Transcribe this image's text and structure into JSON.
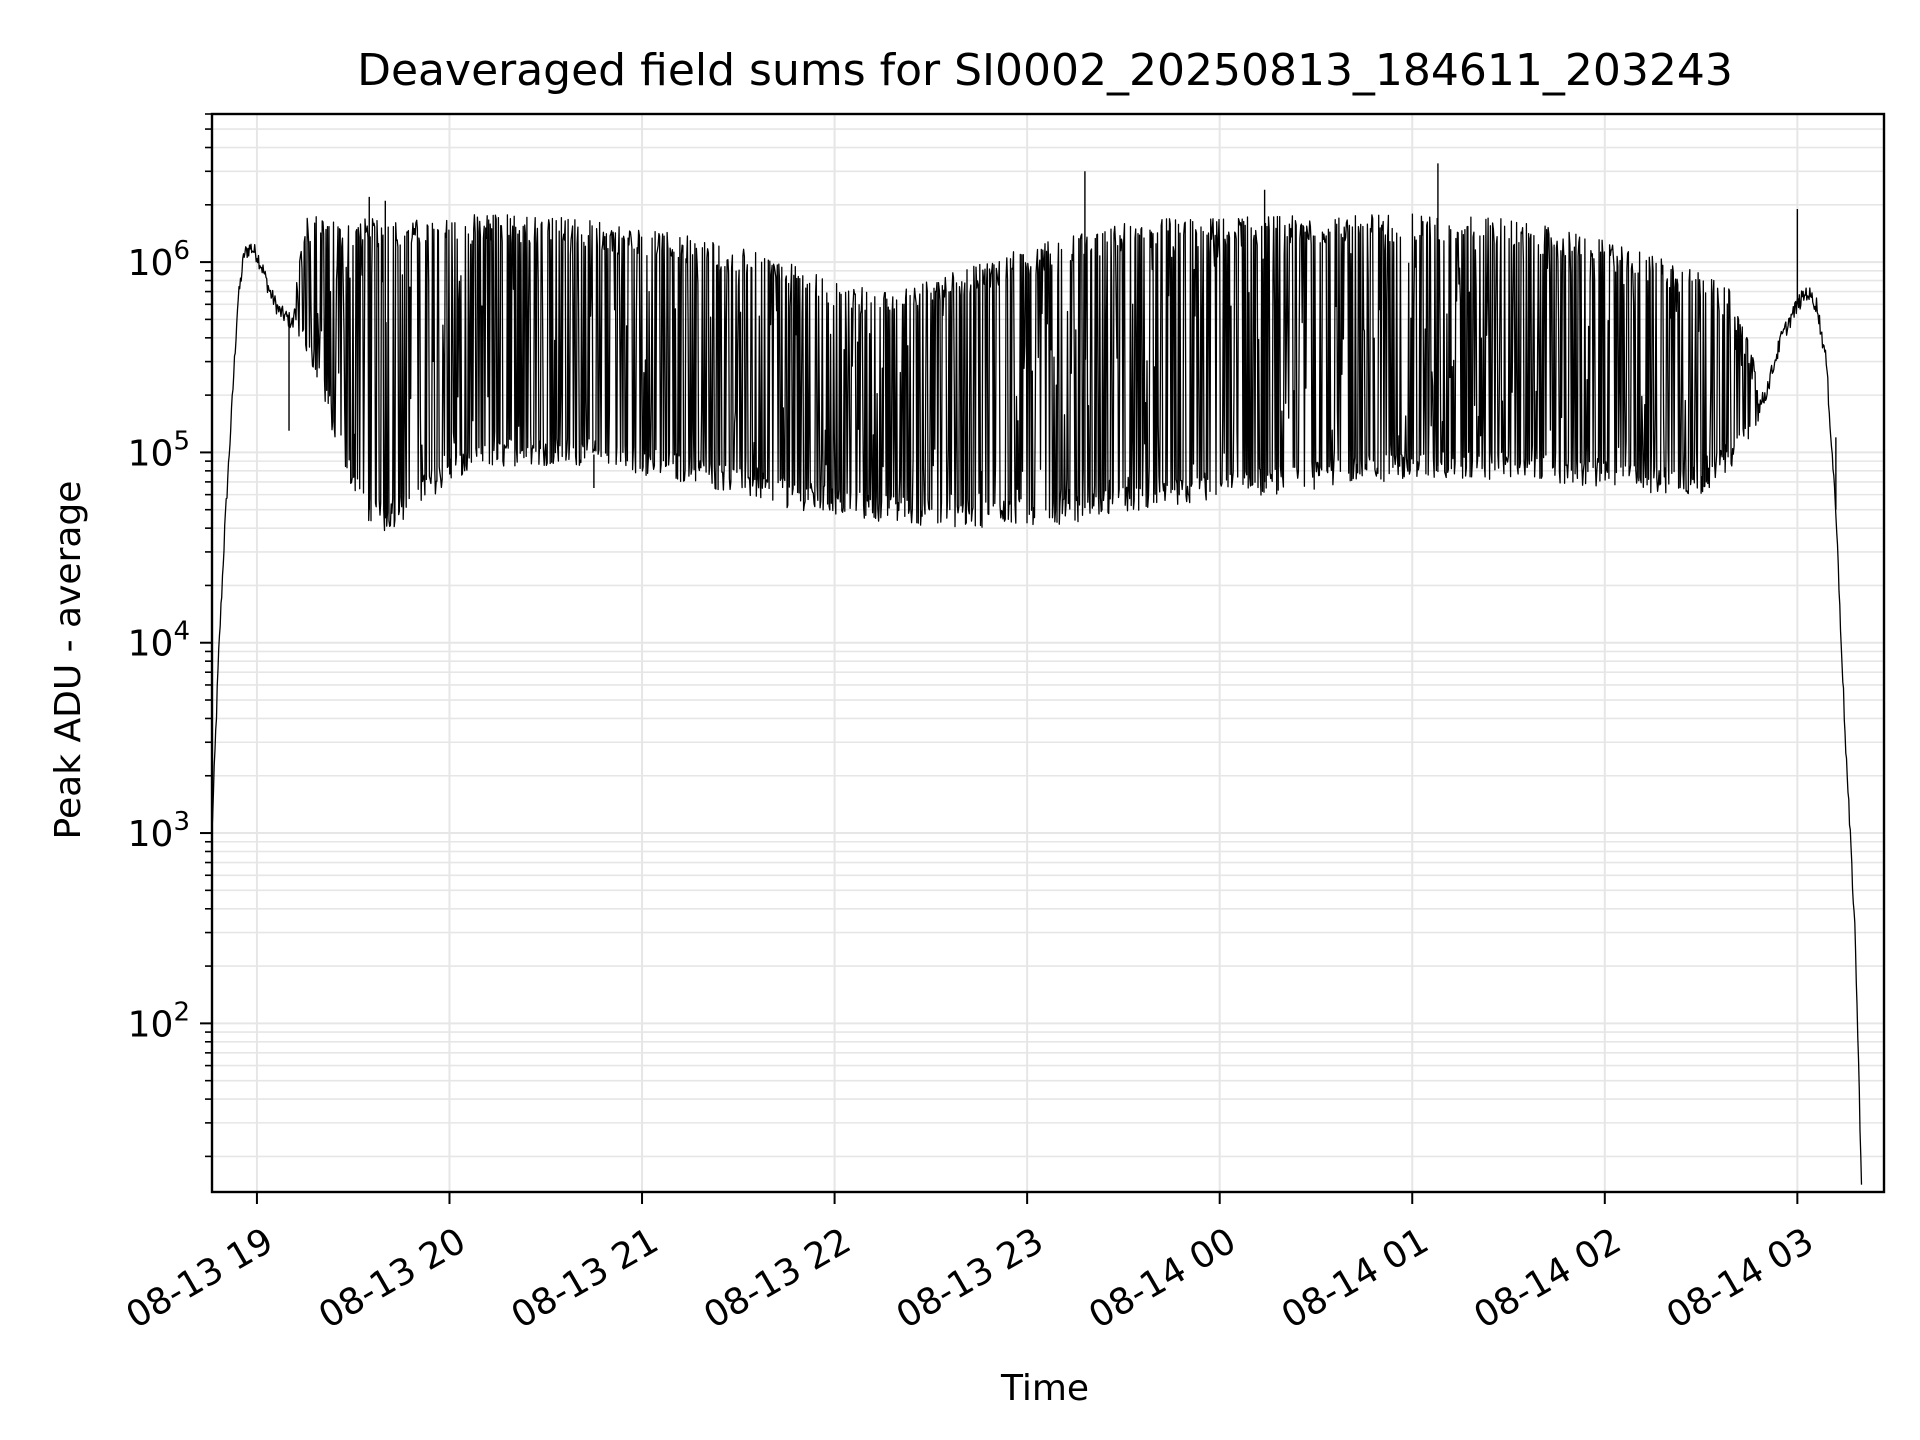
{
  "chart_data": {
    "type": "line",
    "title": "Deaveraged field sums for SI0002_20250813_184611_203243",
    "xlabel": "Time",
    "ylabel": "Peak ADU - average",
    "yscale": "log",
    "ylim": [
      13,
      6000000
    ],
    "xlim": [
      "2025-08-13 18:46",
      "2025-08-14 03:27"
    ],
    "grid": "both (major and minor), light gray",
    "line_color": "#000000",
    "x_ticks": [
      {
        "value": "2025-08-13 19:00",
        "label": "08-13 19"
      },
      {
        "value": "2025-08-13 20:00",
        "label": "08-13 20"
      },
      {
        "value": "2025-08-13 21:00",
        "label": "08-13 21"
      },
      {
        "value": "2025-08-13 22:00",
        "label": "08-13 22"
      },
      {
        "value": "2025-08-13 23:00",
        "label": "08-13 23"
      },
      {
        "value": "2025-08-14 00:00",
        "label": "08-14 00"
      },
      {
        "value": "2025-08-14 01:00",
        "label": "08-14 01"
      },
      {
        "value": "2025-08-14 02:00",
        "label": "08-14 02"
      },
      {
        "value": "2025-08-14 03:00",
        "label": "08-14 03"
      }
    ],
    "y_ticks": [
      {
        "value": 100,
        "base": "10",
        "exp": "2"
      },
      {
        "value": 1000,
        "base": "10",
        "exp": "3"
      },
      {
        "value": 10000,
        "base": "10",
        "exp": "4"
      },
      {
        "value": 100000,
        "base": "10",
        "exp": "5"
      },
      {
        "value": 1000000,
        "base": "10",
        "exp": "6"
      }
    ],
    "series": [
      {
        "x": [
          "2025-08-13 18:46",
          "2025-08-13 18:48",
          "2025-08-13 18:50",
          "2025-08-13 18:52",
          "2025-08-13 18:54",
          "2025-08-13 18:56",
          "2025-08-13 18:58",
          "2025-08-13 19:00",
          "2025-08-13 19:02",
          "2025-08-13 19:04",
          "2025-08-13 19:07",
          "2025-08-13 19:10",
          "2025-08-13 19:15",
          "2025-08-13 19:20",
          "2025-08-13 19:25",
          "2025-08-13 19:30",
          "2025-08-13 19:35",
          "2025-08-13 19:40",
          "2025-08-13 19:45",
          "2025-08-13 19:50",
          "2025-08-13 19:55",
          "2025-08-13 20:00",
          "2025-08-13 20:10",
          "2025-08-13 20:20",
          "2025-08-13 20:30",
          "2025-08-13 20:40",
          "2025-08-13 20:50",
          "2025-08-13 21:00",
          "2025-08-13 21:15",
          "2025-08-13 21:30",
          "2025-08-13 21:45",
          "2025-08-13 22:00",
          "2025-08-13 22:15",
          "2025-08-13 22:30",
          "2025-08-13 22:45",
          "2025-08-13 23:00",
          "2025-08-13 23:15",
          "2025-08-13 23:30",
          "2025-08-13 23:45",
          "2025-08-14 00:00",
          "2025-08-14 00:15",
          "2025-08-14 00:30",
          "2025-08-14 00:45",
          "2025-08-14 01:00",
          "2025-08-14 01:15",
          "2025-08-14 01:30",
          "2025-08-14 01:45",
          "2025-08-14 02:00",
          "2025-08-14 02:15",
          "2025-08-14 02:30",
          "2025-08-14 02:40",
          "2025-08-14 02:50",
          "2025-08-14 02:55",
          "2025-08-14 03:00",
          "2025-08-14 03:03",
          "2025-08-14 03:06",
          "2025-08-14 03:09",
          "2025-08-14 03:12",
          "2025-08-14 03:15",
          "2025-08-14 03:18",
          "2025-08-14 03:20"
        ],
        "y": [
          1000,
          8000,
          40000,
          150000,
          600000,
          1100000,
          1200000,
          1100000,
          900000,
          700000,
          550000,
          500000,
          400000,
          250000,
          120000,
          70000,
          50000,
          45000,
          50000,
          60000,
          70000,
          80000,
          90000,
          100000,
          100000,
          100000,
          95000,
          90000,
          80000,
          70000,
          60000,
          55000,
          50000,
          48000,
          47000,
          48000,
          50000,
          55000,
          60000,
          65000,
          70000,
          75000,
          80000,
          85000,
          85000,
          85000,
          80000,
          75000,
          70000,
          70000,
          100000,
          200000,
          400000,
          600000,
          700000,
          600000,
          300000,
          50000,
          3000,
          300,
          15
        ],
        "upper": [
          1000,
          8000,
          40000,
          150000,
          600000,
          1100000,
          1200000,
          1100000,
          900000,
          700000,
          550000,
          500000,
          1700000,
          1800000,
          1700000,
          1700000,
          1700000,
          1700000,
          1700000,
          1700000,
          1700000,
          1700000,
          1800000,
          1800000,
          1750000,
          1700000,
          1600000,
          1500000,
          1400000,
          1200000,
          1000000,
          800000,
          700000,
          800000,
          1000000,
          1200000,
          1400000,
          1600000,
          1700000,
          1700000,
          1750000,
          1750000,
          1800000,
          1800000,
          1750000,
          1700000,
          1500000,
          1300000,
          1100000,
          900000,
          700000,
          200000,
          400000,
          600000,
          700000,
          600000,
          300000,
          50000,
          3000,
          300,
          15
        ],
        "spikes": [
          {
            "x": "2025-08-13 23:18",
            "y": 3000000
          },
          {
            "x": "2025-08-14 00:14",
            "y": 2400000
          },
          {
            "x": "2025-08-14 01:08",
            "y": 3300000
          },
          {
            "x": "2025-08-14 03:00",
            "y": 1900000
          },
          {
            "x": "2025-08-13 19:35",
            "y": 2200000
          },
          {
            "x": "2025-08-13 19:40",
            "y": 2100000
          },
          {
            "x": "2025-08-13 19:10",
            "y": 130000
          },
          {
            "x": "2025-08-13 20:45",
            "y": 65000
          },
          {
            "x": "2025-08-14 03:12",
            "y": 120000
          }
        ]
      }
    ]
  }
}
